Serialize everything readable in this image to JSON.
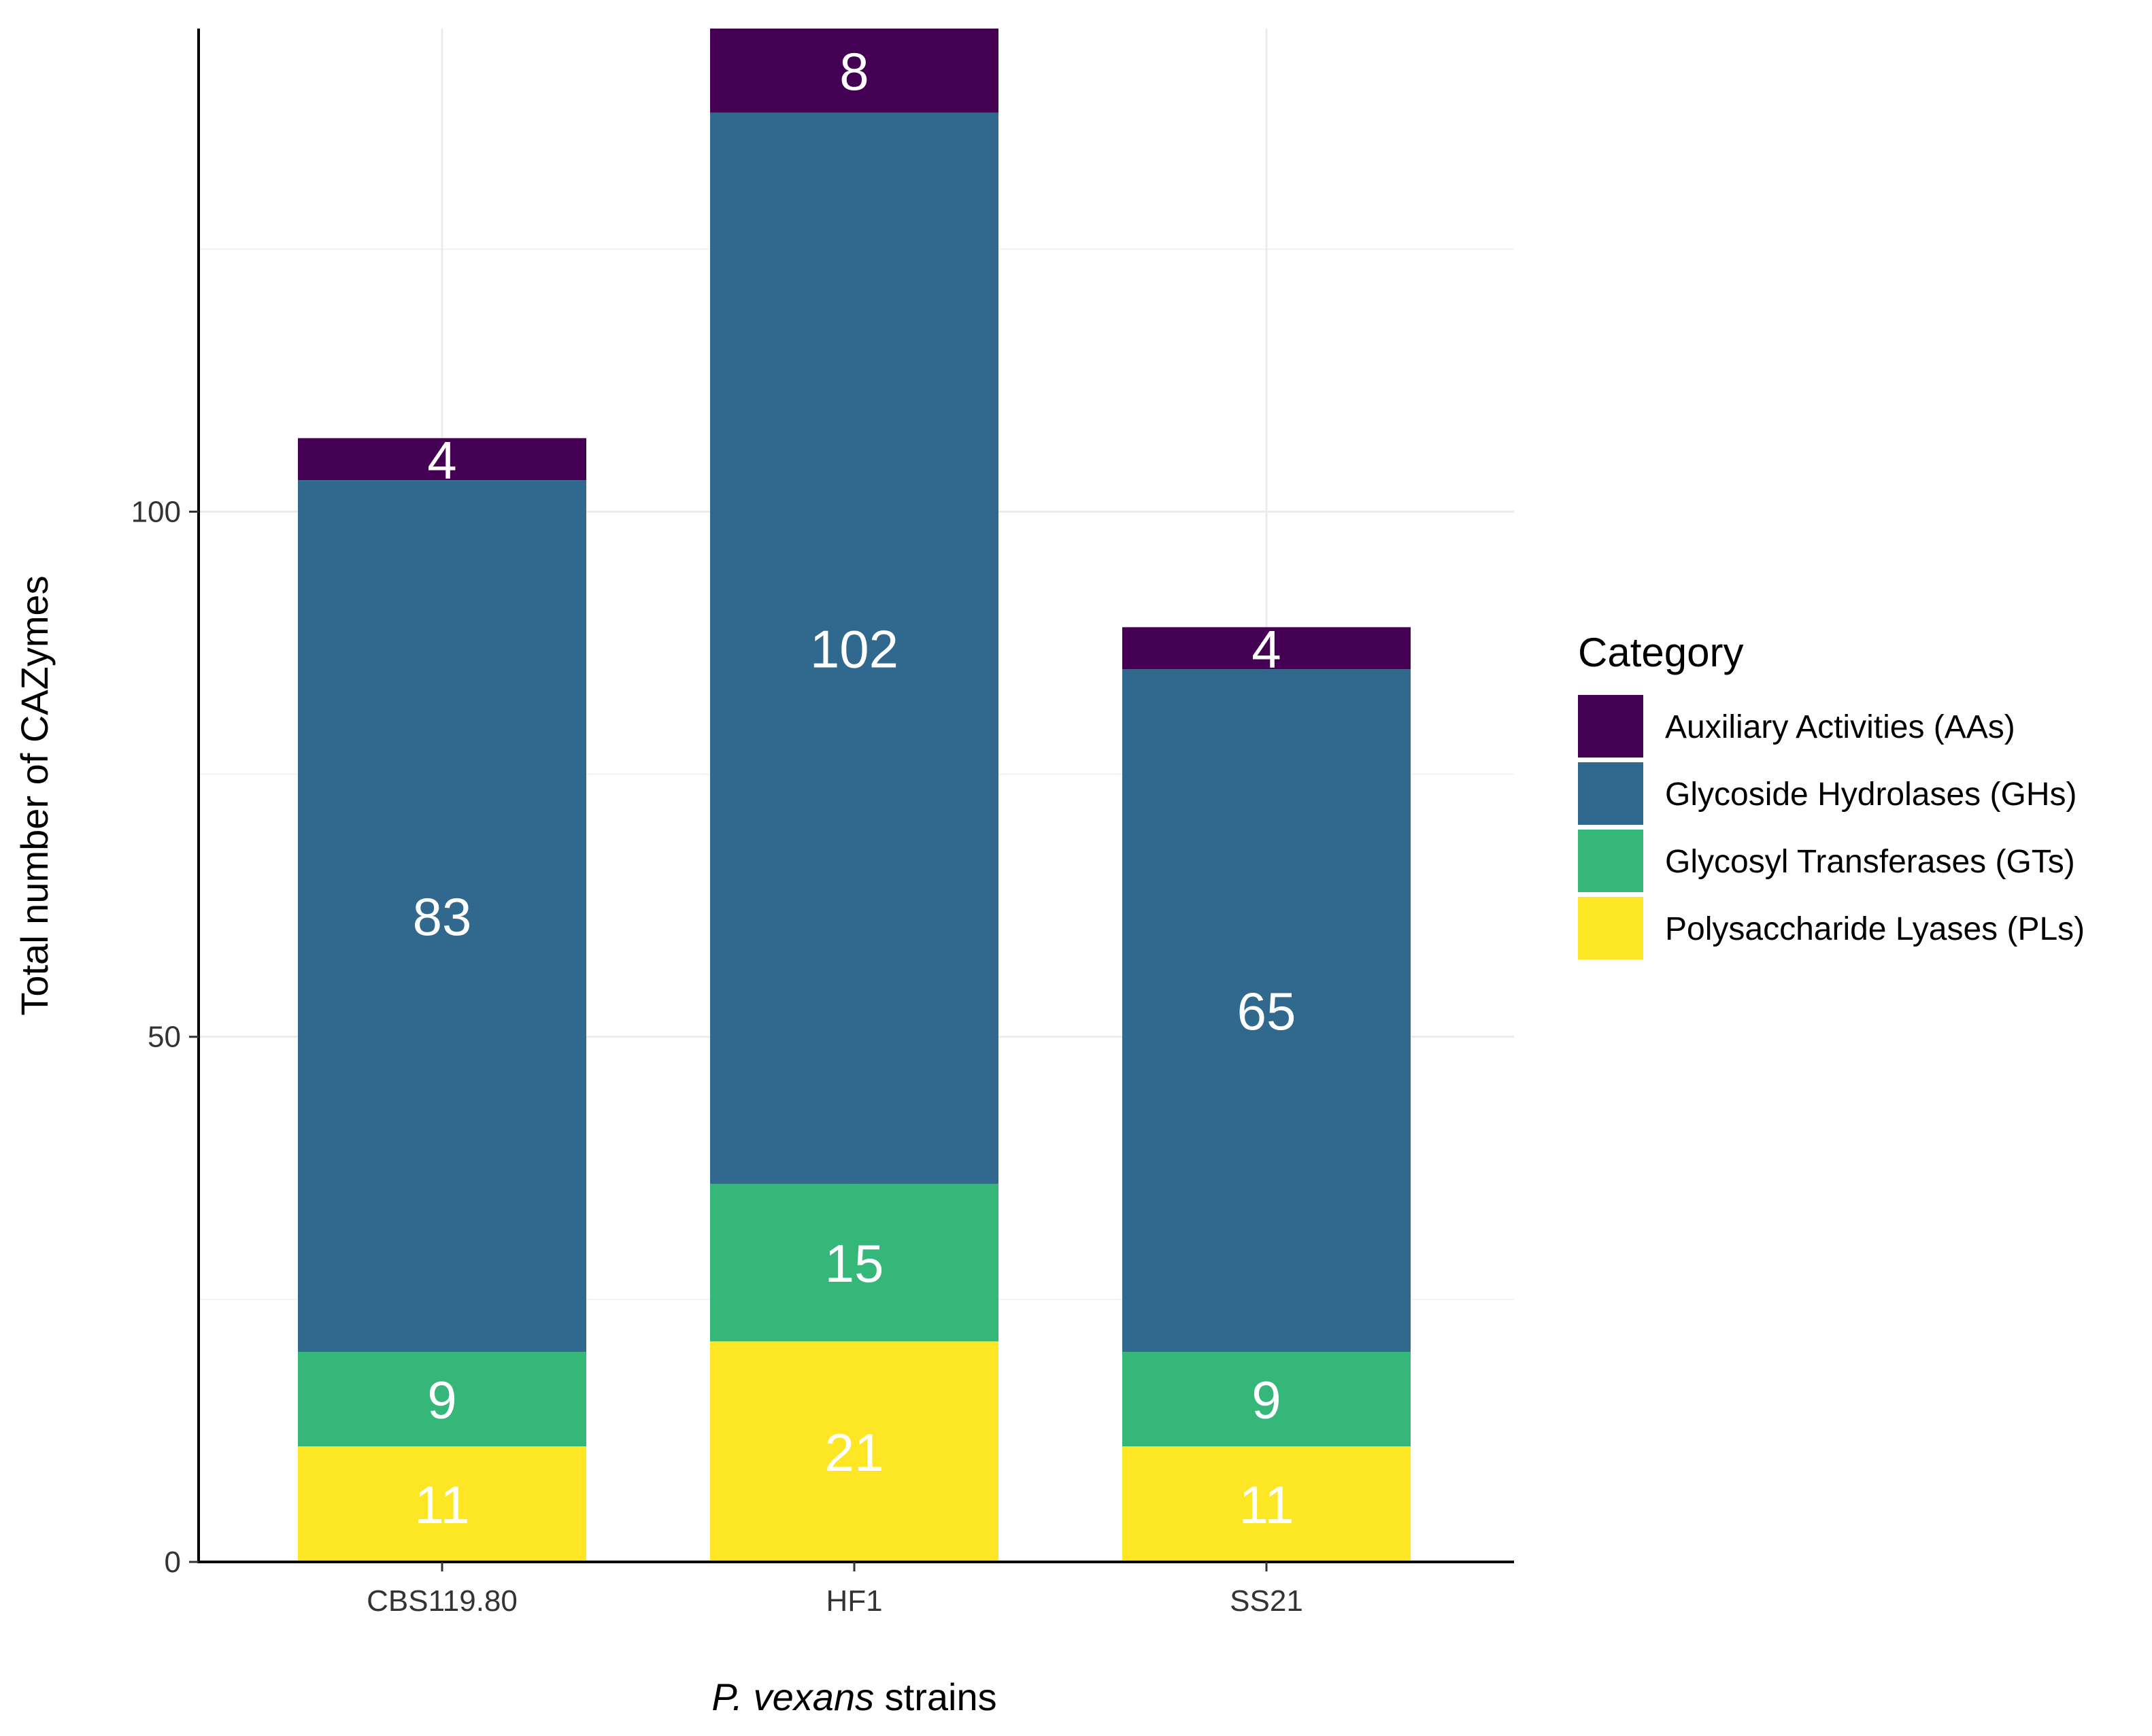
{
  "chart_data": {
    "type": "bar",
    "stacked": true,
    "categories": [
      "CBS119.80",
      "HF1",
      "SS21"
    ],
    "series": [
      {
        "name": "Polysaccharide Lyases (PLs)",
        "color": "#FDE725",
        "values": [
          11,
          21,
          11
        ]
      },
      {
        "name": "Glycosyl Transferases (GTs)",
        "color": "#35B779",
        "values": [
          9,
          15,
          9
        ]
      },
      {
        "name": "Glycoside Hydrolases (GHs)",
        "color": "#31688E",
        "values": [
          83,
          102,
          65
        ]
      },
      {
        "name": "Auxiliary Activities (AAs)",
        "color": "#440154",
        "values": [
          4,
          8,
          4
        ]
      }
    ],
    "xlabel_italic": "P. vexans",
    "xlabel_rest": " strains",
    "ylabel": "Total number of CAZymes",
    "yticks": [
      0,
      50,
      100
    ],
    "ylim": [
      0,
      146
    ],
    "grid": true,
    "legend": {
      "title": "Category",
      "position": "right",
      "order": [
        "Auxiliary Activities (AAs)",
        "Glycoside Hydrolases (GHs)",
        "Glycosyl Transferases (GTs)",
        "Polysaccharide Lyases (PLs)"
      ]
    }
  }
}
